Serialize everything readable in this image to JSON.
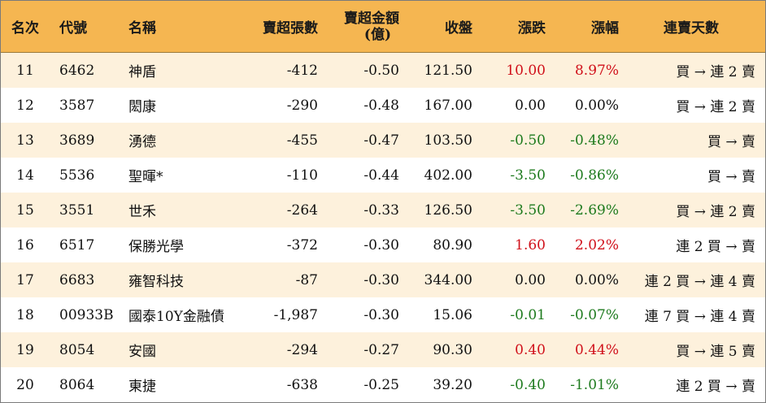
{
  "headers": {
    "rank": "名次",
    "code": "代號",
    "name": "名稱",
    "net_lots": "賣超張數",
    "net_amount_line1": "賣超金額",
    "net_amount_line2": "(億)",
    "close": "收盤",
    "change": "漲跌",
    "change_pct": "漲幅",
    "streak": "連賣天數"
  },
  "colors": {
    "header_bg": "#f5b651",
    "row_odd_bg": "#fdf1dc",
    "row_even_bg": "#ffffff",
    "up": "#d0101a",
    "down": "#1d7a1d"
  },
  "rows": [
    {
      "rank": "11",
      "code": "6462",
      "name": "神盾",
      "net_lots": "-412",
      "net_amount": "-0.50",
      "close": "121.50",
      "change": "10.00",
      "change_pct": "8.97%",
      "trend": "up",
      "streak": "買 → 連 2 賣"
    },
    {
      "rank": "12",
      "code": "3587",
      "name": "閎康",
      "net_lots": "-290",
      "net_amount": "-0.48",
      "close": "167.00",
      "change": "0.00",
      "change_pct": "0.00%",
      "trend": "flat",
      "streak": "買 → 連 2 賣"
    },
    {
      "rank": "13",
      "code": "3689",
      "name": "湧德",
      "net_lots": "-455",
      "net_amount": "-0.47",
      "close": "103.50",
      "change": "-0.50",
      "change_pct": "-0.48%",
      "trend": "down",
      "streak": "買 → 賣"
    },
    {
      "rank": "14",
      "code": "5536",
      "name": "聖暉*",
      "net_lots": "-110",
      "net_amount": "-0.44",
      "close": "402.00",
      "change": "-3.50",
      "change_pct": "-0.86%",
      "trend": "down",
      "streak": "買 → 賣"
    },
    {
      "rank": "15",
      "code": "3551",
      "name": "世禾",
      "net_lots": "-264",
      "net_amount": "-0.33",
      "close": "126.50",
      "change": "-3.50",
      "change_pct": "-2.69%",
      "trend": "down",
      "streak": "買 → 連 2 賣"
    },
    {
      "rank": "16",
      "code": "6517",
      "name": "保勝光學",
      "net_lots": "-372",
      "net_amount": "-0.30",
      "close": "80.90",
      "change": "1.60",
      "change_pct": "2.02%",
      "trend": "up",
      "streak": "連 2 買 → 賣"
    },
    {
      "rank": "17",
      "code": "6683",
      "name": "雍智科技",
      "net_lots": "-87",
      "net_amount": "-0.30",
      "close": "344.00",
      "change": "0.00",
      "change_pct": "0.00%",
      "trend": "flat",
      "streak": "連 2 買 → 連 4 賣"
    },
    {
      "rank": "18",
      "code": "00933B",
      "name": "國泰10Y金融債",
      "net_lots": "-1,987",
      "net_amount": "-0.30",
      "close": "15.06",
      "change": "-0.01",
      "change_pct": "-0.07%",
      "trend": "down",
      "streak": "連 7 買 → 連 4 賣"
    },
    {
      "rank": "19",
      "code": "8054",
      "name": "安國",
      "net_lots": "-294",
      "net_amount": "-0.27",
      "close": "90.30",
      "change": "0.40",
      "change_pct": "0.44%",
      "trend": "up",
      "streak": "買 → 連 5 賣"
    },
    {
      "rank": "20",
      "code": "8064",
      "name": "東捷",
      "net_lots": "-638",
      "net_amount": "-0.25",
      "close": "39.20",
      "change": "-0.40",
      "change_pct": "-1.01%",
      "trend": "down",
      "streak": "連 2 買 → 賣"
    }
  ]
}
